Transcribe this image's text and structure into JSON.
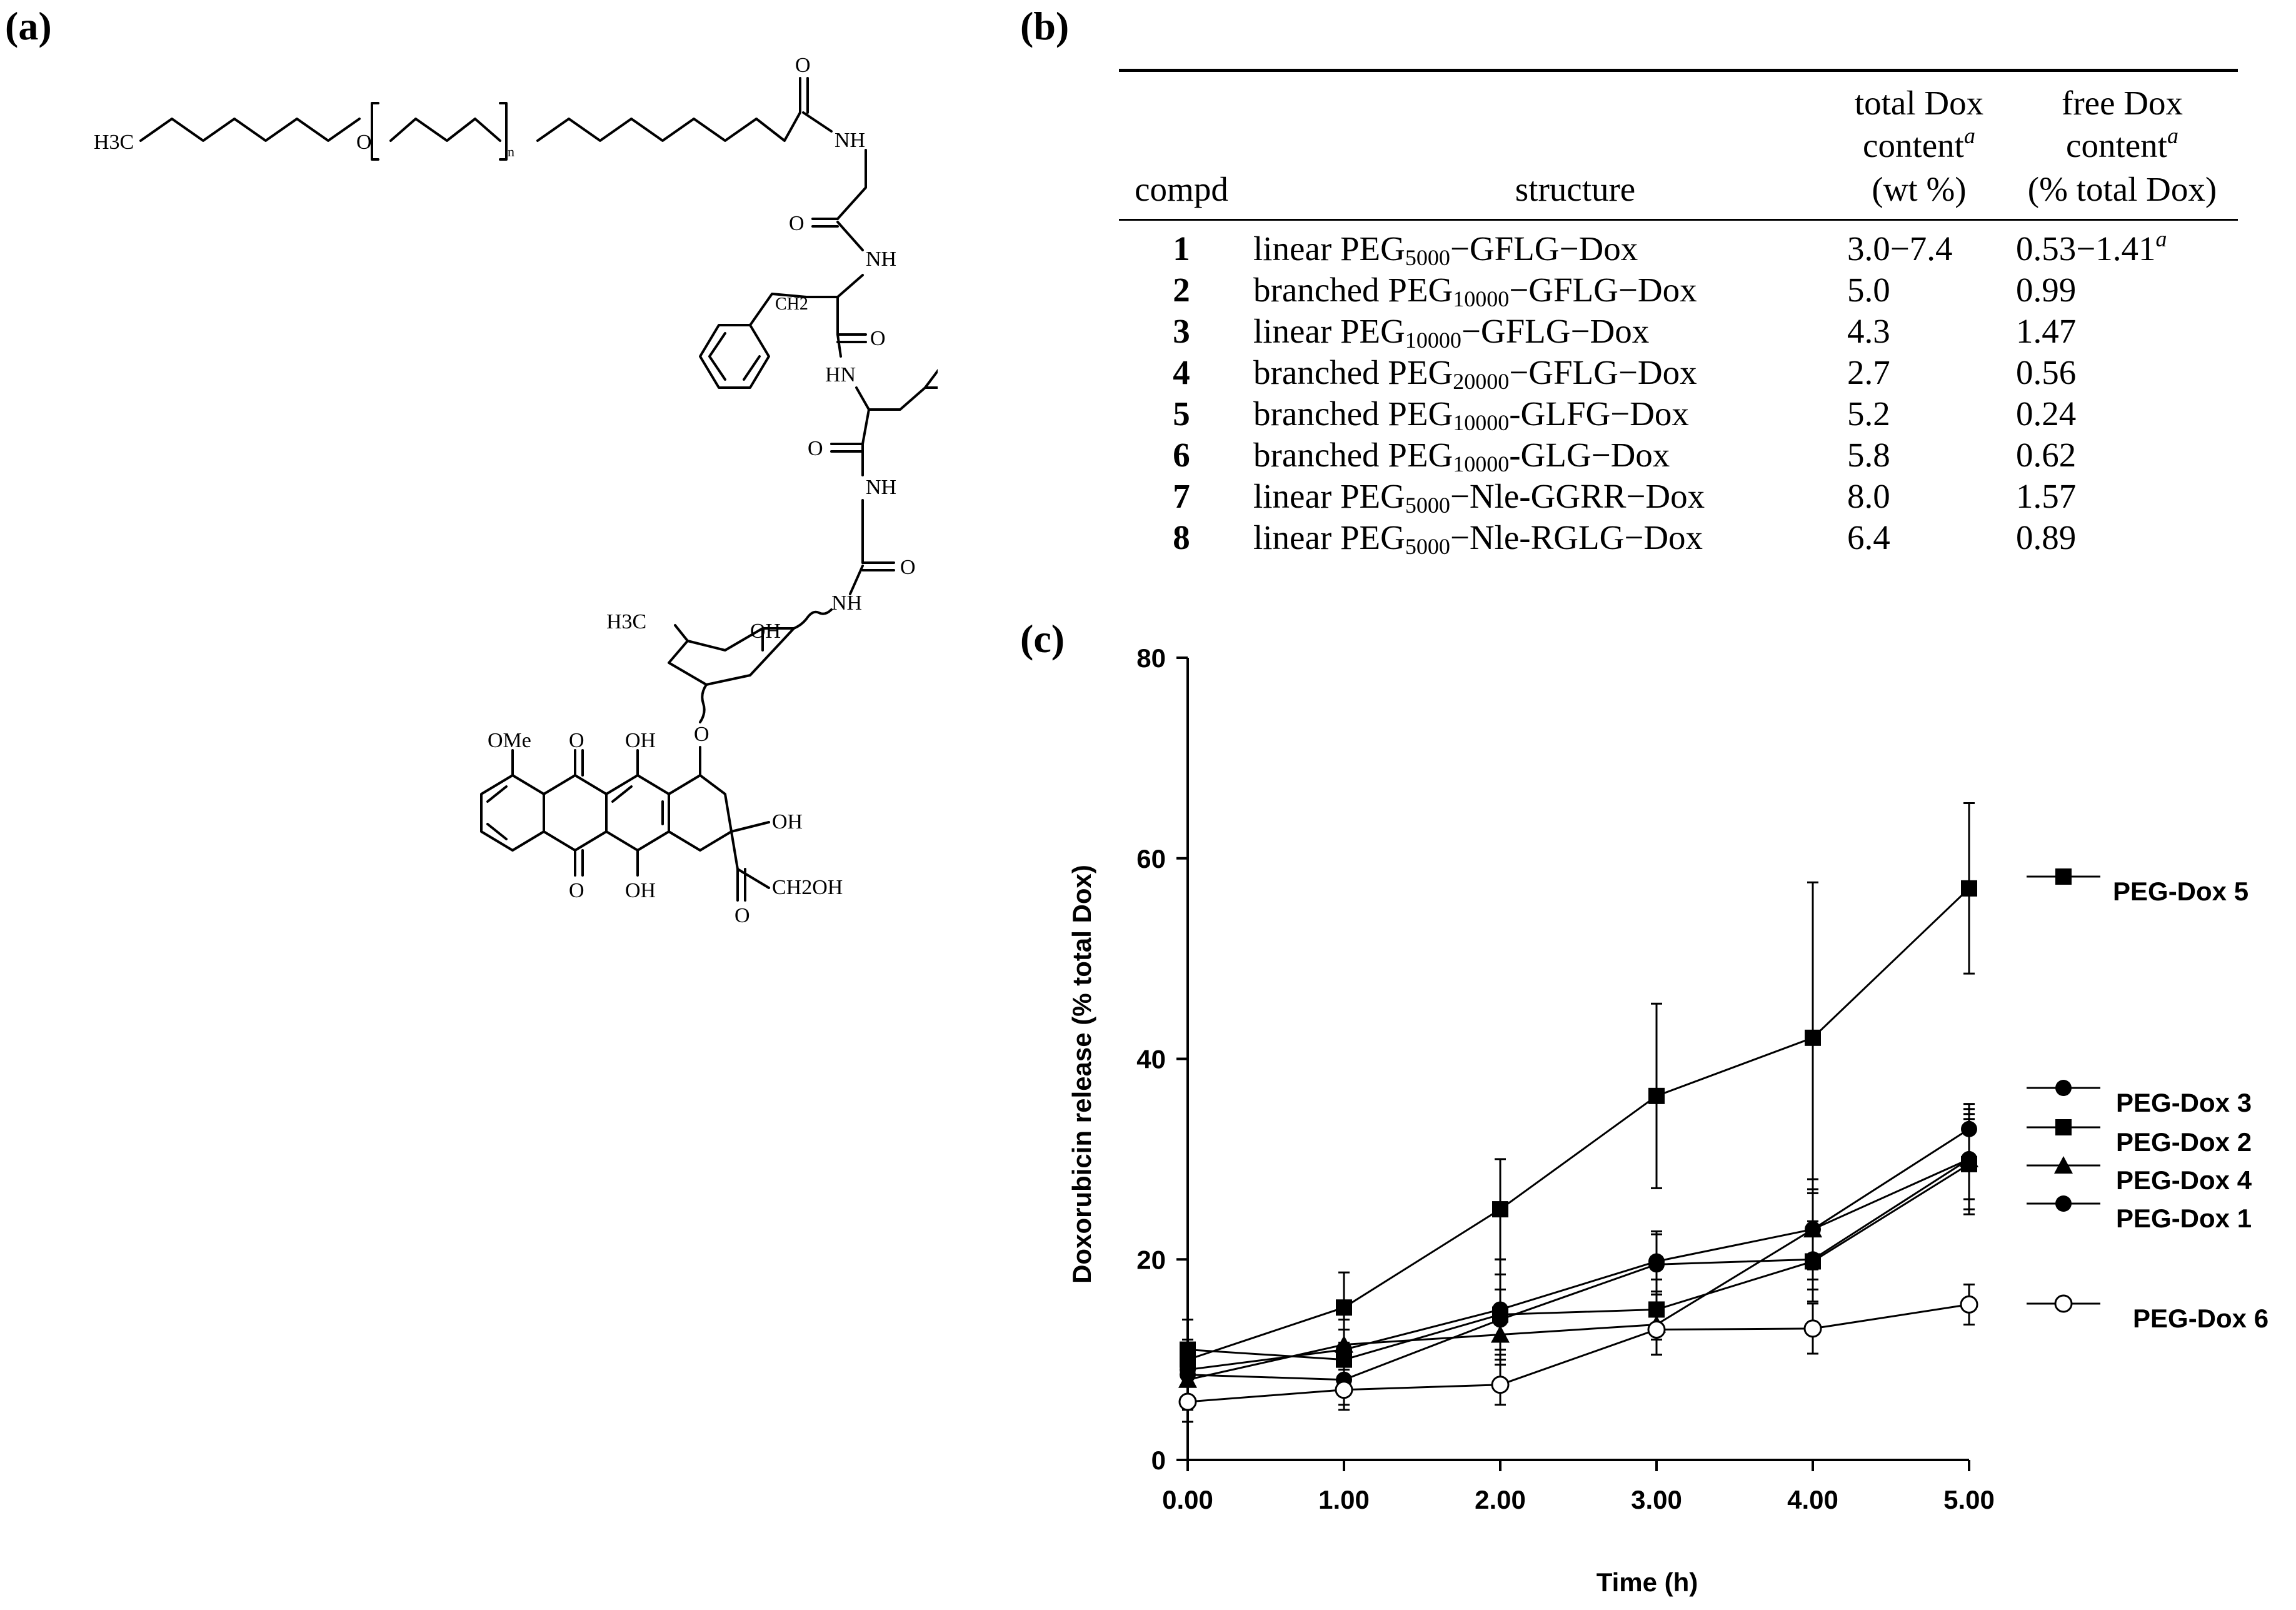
{
  "panels": {
    "a": "(a)",
    "b": "(b)",
    "c": "(c)"
  },
  "structure": {
    "labels": {
      "h3c": "H3C",
      "h3c_sugar": "H3C",
      "o_peg": "O",
      "n_sub": "n",
      "nh1": "NH",
      "nh2": "NH",
      "nh3": "HN",
      "nh4": "NH",
      "nh5": "NH",
      "o1": "O",
      "o2": "O",
      "o3": "O",
      "o4": "O",
      "o5": "O",
      "ch2": "CH2",
      "oh_sugar": "OH",
      "ome": "OMe",
      "oh_top": "OH",
      "oh_bot": "OH",
      "oh_ring": "OH",
      "ch2oh": "CH2OH",
      "o_quin_top": "O",
      "o_quin_bot": "O",
      "o_ketone": "O",
      "o_glyc": "O"
    }
  },
  "table": {
    "headers": {
      "compd": "compd",
      "structure": "structure",
      "total_1": "total Dox",
      "total_2": "content",
      "total_3": "(wt %)",
      "free_1": "free Dox",
      "free_2": "content",
      "free_3": "(% total Dox)",
      "footnote_mark": "a"
    },
    "rows": [
      {
        "compd": "1",
        "pre": "linear PEG",
        "sub": "5000",
        "post": "−GFLG−Dox",
        "total": "3.0−7.4",
        "free": "0.53−1.41",
        "free_mark": "a"
      },
      {
        "compd": "2",
        "pre": "branched PEG",
        "sub": "10000",
        "post": "−GFLG−Dox",
        "total": "5.0",
        "free": "0.99",
        "free_mark": ""
      },
      {
        "compd": "3",
        "pre": "linear PEG",
        "sub": "10000",
        "post": "−GFLG−Dox",
        "total": "4.3",
        "free": "1.47",
        "free_mark": ""
      },
      {
        "compd": "4",
        "pre": "branched PEG",
        "sub": "20000",
        "post": "−GFLG−Dox",
        "total": "2.7",
        "free": "0.56",
        "free_mark": ""
      },
      {
        "compd": "5",
        "pre": "branched PEG",
        "sub": "10000",
        "post": "-GLFG−Dox",
        "total": "5.2",
        "free": "0.24",
        "free_mark": ""
      },
      {
        "compd": "6",
        "pre": "branched PEG",
        "sub": "10000",
        "post": "-GLG−Dox",
        "total": "5.8",
        "free": "0.62",
        "free_mark": ""
      },
      {
        "compd": "7",
        "pre": "linear PEG",
        "sub": "5000",
        "post": "−Nle-GGRR−Dox",
        "total": "8.0",
        "free": "1.57",
        "free_mark": ""
      },
      {
        "compd": "8",
        "pre": "linear PEG",
        "sub": "5000",
        "post": "−Nle-RGLG−Dox",
        "total": "6.4",
        "free": "0.89",
        "free_mark": ""
      }
    ]
  },
  "chart_data": {
    "type": "line",
    "title": "",
    "xlabel": "Time (h)",
    "ylabel": "Doxorubicin release (% total  Dox)",
    "xlim": [
      0,
      5
    ],
    "ylim": [
      0,
      80
    ],
    "x_ticks": [
      "0.00",
      "1.00",
      "2.00",
      "3.00",
      "4.00",
      "5.00"
    ],
    "y_ticks": [
      "0",
      "20",
      "40",
      "60",
      "80"
    ],
    "x": [
      0,
      1,
      2,
      3,
      4,
      5
    ],
    "grid": false,
    "legend_position": "right",
    "series": [
      {
        "name": "PEG-Dox 5",
        "marker": "square-filled",
        "values": [
          10,
          15.2,
          25,
          36.3,
          42.1,
          57
        ],
        "err": [
          4,
          3.5,
          5,
          9.2,
          15.5,
          8.5
        ]
      },
      {
        "name": "PEG-Dox 3",
        "marker": "circle-filled",
        "values": [
          9,
          11,
          15,
          19.8,
          23,
          33
        ],
        "err": [
          3,
          3,
          5,
          3,
          4,
          2.5
        ]
      },
      {
        "name": "PEG-Dox 2",
        "marker": "square-filled",
        "values": [
          11,
          10,
          14.5,
          15,
          19.8,
          29.5
        ],
        "err": [
          3,
          3,
          4,
          3,
          4,
          5
        ]
      },
      {
        "name": "PEG-Dox 4",
        "marker": "triangle-filled",
        "values": [
          8,
          11.5,
          12.5,
          13.5,
          23,
          30
        ],
        "err": [
          3,
          3,
          3,
          3,
          5,
          4
        ]
      },
      {
        "name": "PEG-Dox 1",
        "marker": "circle-filled",
        "values": [
          8.5,
          8,
          14,
          19.5,
          20,
          30
        ],
        "err": [
          3,
          2.5,
          3,
          3,
          3,
          5
        ]
      },
      {
        "name": "PEG-Dox 6",
        "marker": "circle-open",
        "values": [
          5.8,
          7,
          7.5,
          13,
          13.1,
          15.5
        ],
        "err": [
          2,
          2,
          2,
          2.5,
          2.5,
          2
        ]
      }
    ]
  }
}
